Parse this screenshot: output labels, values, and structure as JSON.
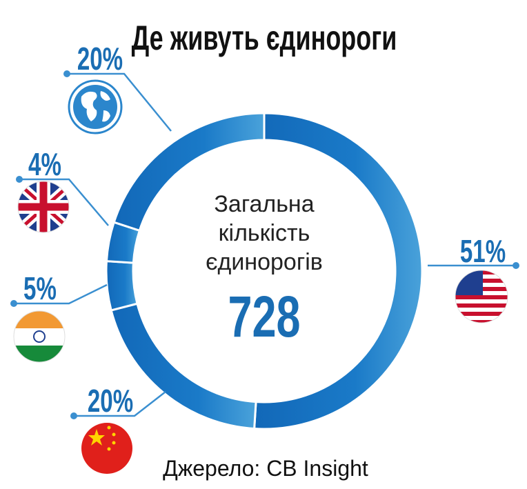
{
  "chart_data": {
    "type": "donut",
    "title": "Де живуть єдинороги",
    "center_label": [
      "Загальна",
      "кількість",
      "єдинорогів"
    ],
    "total": 728,
    "values": [
      51,
      20,
      5,
      4,
      20
    ],
    "value_labels": [
      "51%",
      "20%",
      "5%",
      "4%",
      "20%"
    ],
    "color": "#1877c4",
    "source": "Джерело: CB Insight"
  }
}
